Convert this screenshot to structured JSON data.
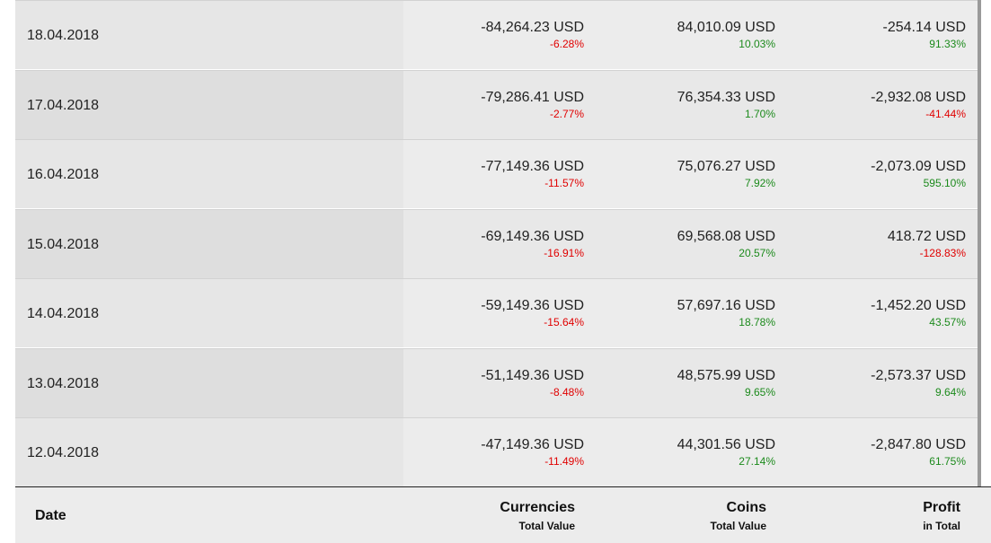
{
  "rows": [
    {
      "date": "18.04.2018",
      "currencies": {
        "value": "-84,264.23 USD",
        "pct": "-6.28%",
        "dir": "neg"
      },
      "coins": {
        "value": "84,010.09 USD",
        "pct": "10.03%",
        "dir": "pos"
      },
      "profit": {
        "value": "-254.14 USD",
        "pct": "91.33%",
        "dir": "pos"
      }
    },
    {
      "date": "17.04.2018",
      "currencies": {
        "value": "-79,286.41 USD",
        "pct": "-2.77%",
        "dir": "neg"
      },
      "coins": {
        "value": "76,354.33 USD",
        "pct": "1.70%",
        "dir": "pos"
      },
      "profit": {
        "value": "-2,932.08 USD",
        "pct": "-41.44%",
        "dir": "neg"
      }
    },
    {
      "date": "16.04.2018",
      "currencies": {
        "value": "-77,149.36 USD",
        "pct": "-11.57%",
        "dir": "neg"
      },
      "coins": {
        "value": "75,076.27 USD",
        "pct": "7.92%",
        "dir": "pos"
      },
      "profit": {
        "value": "-2,073.09 USD",
        "pct": "595.10%",
        "dir": "pos"
      }
    },
    {
      "date": "15.04.2018",
      "currencies": {
        "value": "-69,149.36 USD",
        "pct": "-16.91%",
        "dir": "neg"
      },
      "coins": {
        "value": "69,568.08 USD",
        "pct": "20.57%",
        "dir": "pos"
      },
      "profit": {
        "value": "418.72 USD",
        "pct": "-128.83%",
        "dir": "neg"
      }
    },
    {
      "date": "14.04.2018",
      "currencies": {
        "value": "-59,149.36 USD",
        "pct": "-15.64%",
        "dir": "neg"
      },
      "coins": {
        "value": "57,697.16 USD",
        "pct": "18.78%",
        "dir": "pos"
      },
      "profit": {
        "value": "-1,452.20 USD",
        "pct": "43.57%",
        "dir": "pos"
      }
    },
    {
      "date": "13.04.2018",
      "currencies": {
        "value": "-51,149.36 USD",
        "pct": "-8.48%",
        "dir": "neg"
      },
      "coins": {
        "value": "48,575.99 USD",
        "pct": "9.65%",
        "dir": "pos"
      },
      "profit": {
        "value": "-2,573.37 USD",
        "pct": "9.64%",
        "dir": "pos"
      }
    },
    {
      "date": "12.04.2018",
      "currencies": {
        "value": "-47,149.36 USD",
        "pct": "-11.49%",
        "dir": "neg"
      },
      "coins": {
        "value": "44,301.56 USD",
        "pct": "27.14%",
        "dir": "pos"
      },
      "profit": {
        "value": "-2,847.80 USD",
        "pct": "61.75%",
        "dir": "pos"
      }
    }
  ],
  "footer": {
    "date": "Date",
    "currencies": {
      "title": "Currencies",
      "sub": "Total Value"
    },
    "coins": {
      "title": "Coins",
      "sub": "Total Value"
    },
    "profit": {
      "title": "Profit",
      "sub": "in Total"
    }
  },
  "colors": {
    "negative": "#e00000",
    "positive": "#1c8a1c"
  }
}
